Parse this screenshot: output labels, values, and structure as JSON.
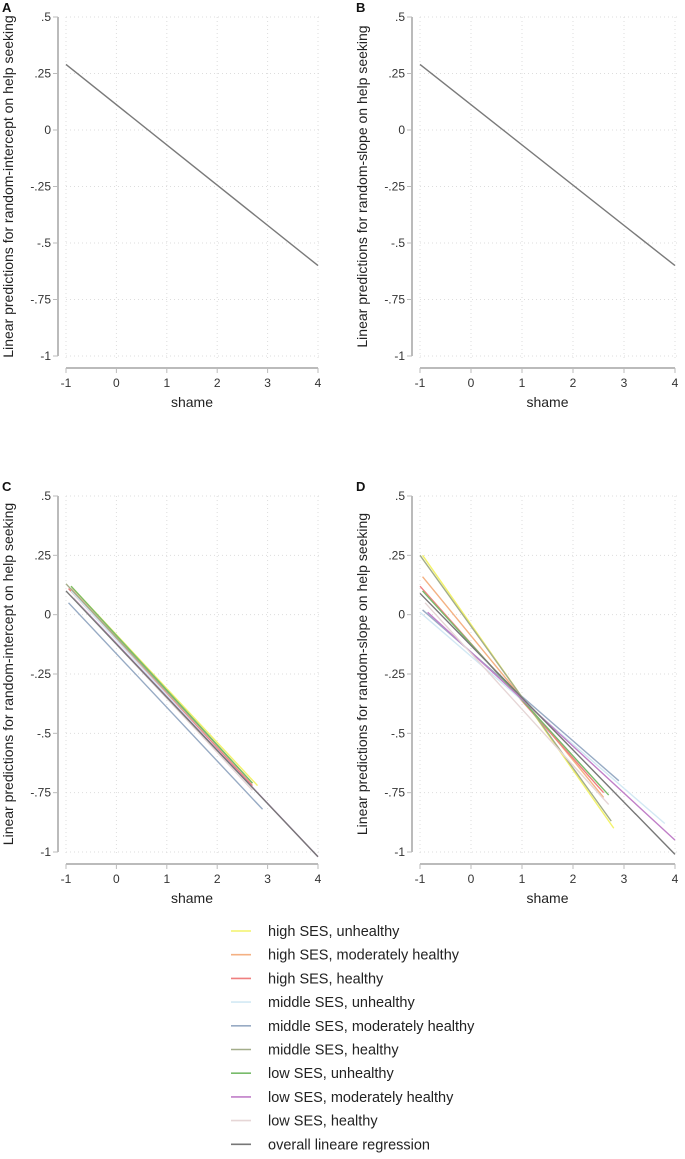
{
  "chart_data": [
    {
      "panel": "A",
      "type": "line",
      "xlabel": "shame",
      "ylabel": "Linear predictions for random-intercept on help seeking",
      "xlim": [
        -1,
        4
      ],
      "ylim": [
        -1,
        0.5
      ],
      "xticks": [
        "-1",
        "0",
        "1",
        "2",
        "3",
        "4"
      ],
      "yticks": [
        ".5",
        ".25",
        "0",
        "-.25",
        "-.5",
        "-.75",
        "-1"
      ],
      "grid": true,
      "series": [
        {
          "color": "#7a7a7a",
          "x": [
            -1,
            4
          ],
          "y": [
            0.29,
            -0.6
          ]
        }
      ]
    },
    {
      "panel": "B",
      "type": "line",
      "xlabel": "shame",
      "ylabel": "Linear predictions for random-slope on help seeking",
      "xlim": [
        -1,
        4
      ],
      "ylim": [
        -1,
        0.5
      ],
      "xticks": [
        "-1",
        "0",
        "1",
        "2",
        "3",
        "4"
      ],
      "yticks": [
        ".5",
        ".25",
        "0",
        "-.25",
        "-.5",
        "-.75",
        "-1"
      ],
      "grid": true,
      "series": [
        {
          "color": "#7a7a7a",
          "x": [
            -1,
            4
          ],
          "y": [
            0.29,
            -0.6
          ]
        }
      ]
    },
    {
      "panel": "C",
      "type": "line",
      "xlabel": "shame",
      "ylabel": "Linear predictions for random-intercept on help seeking",
      "xlim": [
        -1,
        4
      ],
      "ylim": [
        -1,
        0.5
      ],
      "xticks": [
        "-1",
        "0",
        "1",
        "2",
        "3",
        "4"
      ],
      "yticks": [
        ".5",
        ".25",
        "0",
        "-.25",
        "-.5",
        "-.75",
        "-1"
      ],
      "grid": true,
      "series": [
        {
          "name": "high SES, unhealthy",
          "color": "#f3f36a",
          "x": [
            -0.9,
            2.8
          ],
          "y": [
            0.12,
            -0.72
          ]
        },
        {
          "name": "high SES, moderately healthy",
          "color": "#f4b183",
          "x": [
            -0.9,
            2.7
          ],
          "y": [
            0.11,
            -0.71
          ]
        },
        {
          "name": "high SES, healthy",
          "color": "#ef7f7f",
          "x": [
            -0.95,
            2.7
          ],
          "y": [
            0.11,
            -0.72
          ]
        },
        {
          "name": "middle SES, unhealthy",
          "color": "#d3e9f4",
          "x": [
            -0.9,
            2.7
          ],
          "y": [
            0.1,
            -0.73
          ]
        },
        {
          "name": "middle SES, moderately healthy",
          "color": "#98abc4",
          "x": [
            -0.95,
            2.9
          ],
          "y": [
            0.05,
            -0.82
          ]
        },
        {
          "name": "middle SES, healthy",
          "color": "#a3ad8a",
          "x": [
            -1,
            2.7
          ],
          "y": [
            0.13,
            -0.71
          ]
        },
        {
          "name": "low SES, unhealthy",
          "color": "#78bb6a",
          "x": [
            -0.9,
            2.7
          ],
          "y": [
            0.12,
            -0.71
          ]
        },
        {
          "name": "low SES, moderately healthy",
          "color": "#c07fc8",
          "x": [
            -0.85,
            4
          ],
          "y": [
            0.07,
            -1.02
          ]
        },
        {
          "name": "low SES, healthy",
          "color": "#e6d6d6",
          "x": [
            -0.9,
            2.7
          ],
          "y": [
            0.08,
            -0.74
          ]
        },
        {
          "name": "overall lineare regression",
          "color": "#777777",
          "x": [
            -1,
            4
          ],
          "y": [
            0.1,
            -1.02
          ]
        }
      ]
    },
    {
      "panel": "D",
      "type": "line",
      "xlabel": "shame",
      "ylabel": "Linear predictions for random-slope on help seeking",
      "xlim": [
        -1,
        4
      ],
      "ylim": [
        -1,
        0.5
      ],
      "xticks": [
        "-1",
        "0",
        "1",
        "2",
        "3",
        "4"
      ],
      "yticks": [
        ".5",
        ".25",
        "0",
        "-.25",
        "-.5",
        "-.75",
        "-1"
      ],
      "grid": true,
      "series": [
        {
          "name": "high SES, unhealthy",
          "color": "#f3f36a",
          "x": [
            -0.95,
            2.8
          ],
          "y": [
            0.25,
            -0.9
          ]
        },
        {
          "name": "high SES, moderately healthy",
          "color": "#f4b183",
          "x": [
            -0.95,
            2.6
          ],
          "y": [
            0.16,
            -0.77
          ]
        },
        {
          "name": "high SES, healthy",
          "color": "#ef7f7f",
          "x": [
            -1,
            2.6
          ],
          "y": [
            0.12,
            -0.75
          ]
        },
        {
          "name": "middle SES, unhealthy",
          "color": "#d3e9f4",
          "x": [
            -1,
            3.8
          ],
          "y": [
            0.01,
            -0.88
          ]
        },
        {
          "name": "middle SES, moderately healthy",
          "color": "#98abc4",
          "x": [
            -0.95,
            2.9
          ],
          "y": [
            0.02,
            -0.7
          ]
        },
        {
          "name": "middle SES, healthy",
          "color": "#a3ad8a",
          "x": [
            -1,
            2.75
          ],
          "y": [
            0.25,
            -0.87
          ]
        },
        {
          "name": "low SES, unhealthy",
          "color": "#78bb6a",
          "x": [
            -0.95,
            2.7
          ],
          "y": [
            0.1,
            -0.76
          ]
        },
        {
          "name": "low SES, moderately healthy",
          "color": "#c07fc8",
          "x": [
            -0.85,
            4
          ],
          "y": [
            0.01,
            -0.95
          ]
        },
        {
          "name": "low SES, healthy",
          "color": "#e6d6d6",
          "x": [
            -0.9,
            2.7
          ],
          "y": [
            0.05,
            -0.8
          ]
        },
        {
          "name": "overall lineare regression",
          "color": "#777777",
          "x": [
            -1,
            4
          ],
          "y": [
            0.09,
            -1.01
          ]
        }
      ]
    }
  ],
  "legend": {
    "placement": "bottom",
    "items": [
      {
        "label": "high SES, unhealthy",
        "color": "#f3f36a"
      },
      {
        "label": "high SES, moderately healthy",
        "color": "#f4b183"
      },
      {
        "label": "high SES, healthy",
        "color": "#ef7f7f"
      },
      {
        "label": "middle SES, unhealthy",
        "color": "#d3e9f4"
      },
      {
        "label": "middle SES, moderately healthy",
        "color": "#98abc4"
      },
      {
        "label": "middle SES, healthy",
        "color": "#a3ad8a"
      },
      {
        "label": "low SES, unhealthy",
        "color": "#78bb6a"
      },
      {
        "label": "low SES, moderately healthy",
        "color": "#c07fc8"
      },
      {
        "label": "low SES, healthy",
        "color": "#e6d6d6"
      },
      {
        "label": "overall lineare regression",
        "color": "#777777"
      }
    ]
  }
}
